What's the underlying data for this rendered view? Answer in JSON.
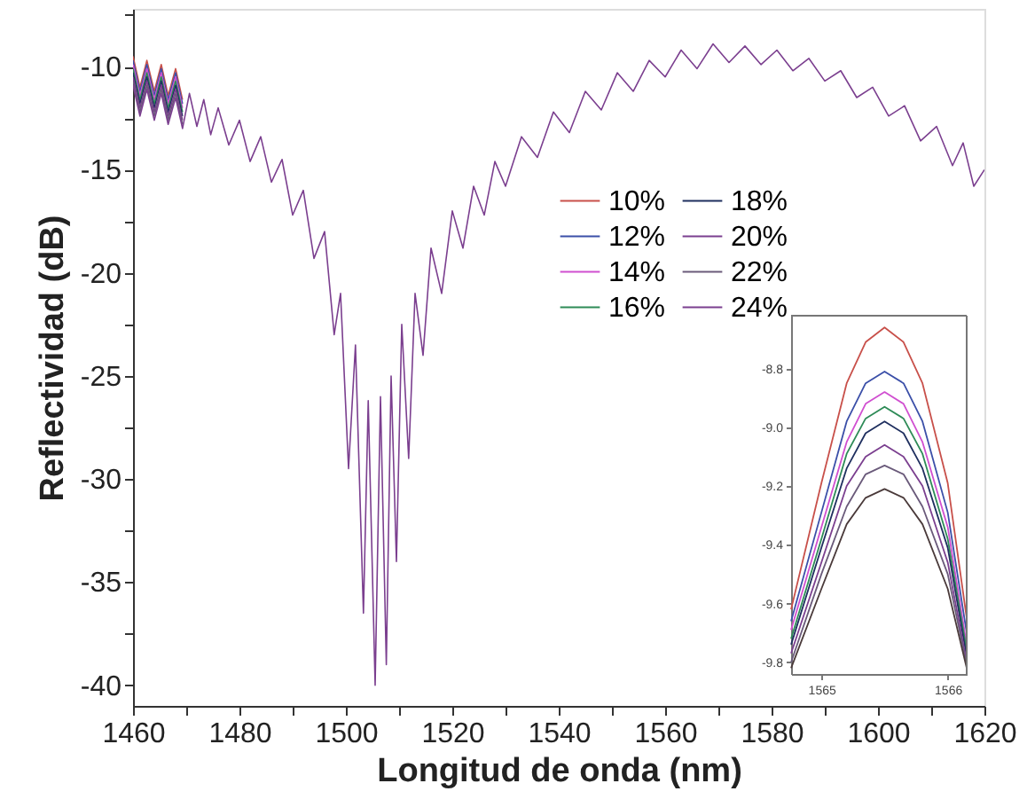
{
  "chart_data": [
    {
      "type": "line",
      "xlabel": "Longitud de onda (nm)",
      "ylabel": "Reflectividad (dB)",
      "xlim": [
        1460,
        1620
      ],
      "ylim": [
        -41,
        -7.2
      ],
      "xticks": [
        1460,
        {
          "value": 1470,
          "label": null
        },
        1480,
        {
          "value": 1490,
          "label": null
        },
        1500,
        {
          "value": 1510,
          "label": null
        },
        1520,
        {
          "value": 1530,
          "label": null
        },
        1540,
        {
          "value": 1550,
          "label": null
        },
        1560,
        {
          "value": 1570,
          "label": null
        },
        1580,
        {
          "value": 1590,
          "label": null
        },
        1600,
        {
          "value": 1610,
          "label": null
        },
        1620
      ],
      "yticks": [
        -40,
        {
          "value": -37.5,
          "label": null
        },
        -35,
        {
          "value": -32.5,
          "label": null
        },
        -30,
        {
          "value": -27.5,
          "label": null
        },
        -25,
        {
          "value": -22.5,
          "label": null
        },
        -20,
        {
          "value": -17.5,
          "label": null
        },
        -15,
        {
          "value": -12.5,
          "label": null
        },
        -10,
        {
          "value": -7.5,
          "label": null
        }
      ],
      "grid": false,
      "legend": "top right",
      "line_style": "solid",
      "marker": "none",
      "x": [
        1460,
        1461.3,
        1462.6,
        1464,
        1465.3,
        1466.6,
        1468,
        1469.3,
        1470.6,
        1472,
        1473.3,
        1474.6,
        1476,
        1478,
        1480,
        1482,
        1484,
        1486,
        1488,
        1490,
        1492,
        1494,
        1496,
        1497.8,
        1499,
        1500.5,
        1501.8,
        1503.3,
        1504.2,
        1505.5,
        1506.5,
        1507.6,
        1508.5,
        1509.5,
        1510.5,
        1511.8,
        1513,
        1514.5,
        1516,
        1518,
        1520,
        1522,
        1524,
        1526,
        1528,
        1530,
        1533,
        1536,
        1539,
        1542,
        1545,
        1548,
        1551,
        1554,
        1557,
        1560,
        1563,
        1566,
        1569,
        1572,
        1575,
        1578,
        1581,
        1584,
        1587,
        1590,
        1593,
        1596,
        1599,
        1602,
        1605,
        1608,
        1611,
        1614,
        1616,
        1618,
        1620
      ],
      "series": [
        {
          "name": "10%",
          "color": "#c8504a",
          "values": [
            -9.5,
            -11.0,
            -9.7,
            -11.2,
            -9.9,
            -11.4,
            -10.1,
            -11.6,
            null,
            null,
            null,
            null,
            null,
            null,
            null,
            null,
            null,
            null,
            null,
            null,
            null,
            null,
            null,
            null,
            null,
            null,
            null,
            null,
            null,
            null,
            null,
            null,
            null,
            null,
            null,
            null,
            null,
            null,
            null,
            null,
            null,
            null,
            null,
            null,
            null,
            null,
            null,
            null,
            null,
            null,
            null,
            null,
            null,
            null,
            null,
            null,
            null,
            null,
            null,
            null,
            null,
            null,
            null,
            null,
            null,
            null,
            null,
            null,
            null,
            null,
            null,
            null,
            null,
            null,
            null,
            null,
            null
          ]
        },
        {
          "name": "12%",
          "color": "#3b4fa8",
          "values": [
            -9.7,
            -11.2,
            -9.9,
            -11.4,
            -10.1,
            -11.6,
            -10.3,
            -11.8,
            null,
            null,
            null,
            null,
            null,
            null,
            null,
            null,
            null,
            null,
            null,
            null,
            null,
            null,
            null,
            null,
            null,
            null,
            null,
            null,
            null,
            null,
            null,
            null,
            null,
            null,
            null,
            null,
            null,
            null,
            null,
            null,
            null,
            null,
            null,
            null,
            null,
            null,
            null,
            null,
            null,
            null,
            null,
            null,
            null,
            null,
            null,
            null,
            null,
            null,
            null,
            null,
            null,
            null,
            null,
            null,
            null,
            null,
            null,
            null,
            null,
            null,
            null,
            null,
            null,
            null,
            null,
            null,
            null
          ]
        },
        {
          "name": "14%",
          "color": "#d04fd0",
          "values": [
            -9.9,
            -11.4,
            -10.1,
            -11.6,
            -10.3,
            -11.8,
            -10.5,
            -12.0,
            null,
            null,
            null,
            null,
            null,
            null,
            null,
            null,
            null,
            null,
            null,
            null,
            null,
            null,
            null,
            null,
            null,
            null,
            null,
            null,
            null,
            null,
            null,
            null,
            null,
            null,
            null,
            null,
            null,
            null,
            null,
            null,
            null,
            null,
            null,
            null,
            null,
            null,
            null,
            null,
            null,
            null,
            null,
            null,
            null,
            null,
            null,
            null,
            null,
            null,
            null,
            null,
            null,
            null,
            null,
            null,
            null,
            null,
            null,
            null,
            null,
            null,
            null,
            null,
            null,
            null,
            null,
            null,
            null
          ]
        },
        {
          "name": "16%",
          "color": "#2e8b57",
          "values": [
            -10.1,
            -11.6,
            -10.3,
            -11.8,
            -10.5,
            -12.0,
            -10.7,
            -12.2,
            null,
            null,
            null,
            null,
            null,
            null,
            null,
            null,
            null,
            null,
            null,
            null,
            null,
            null,
            null,
            null,
            null,
            null,
            null,
            null,
            null,
            null,
            null,
            null,
            null,
            null,
            null,
            null,
            null,
            null,
            null,
            null,
            null,
            null,
            null,
            null,
            null,
            null,
            null,
            null,
            null,
            null,
            null,
            null,
            null,
            null,
            null,
            null,
            null,
            null,
            null,
            null,
            null,
            null,
            null,
            null,
            null,
            null,
            null,
            null,
            null,
            null,
            null,
            null,
            null,
            null,
            null,
            null,
            null
          ]
        },
        {
          "name": "18%",
          "color": "#1f2f5f",
          "values": [
            -10.3,
            -11.8,
            -10.5,
            -12.0,
            -10.7,
            -12.2,
            -10.9,
            -12.4,
            null,
            null,
            null,
            null,
            null,
            null,
            null,
            null,
            null,
            null,
            null,
            null,
            null,
            null,
            null,
            null,
            null,
            null,
            null,
            null,
            null,
            null,
            null,
            null,
            null,
            null,
            null,
            null,
            null,
            null,
            null,
            null,
            null,
            null,
            null,
            null,
            null,
            null,
            null,
            null,
            null,
            null,
            null,
            null,
            null,
            null,
            null,
            null,
            null,
            null,
            null,
            null,
            null,
            null,
            null,
            null,
            null,
            null,
            null,
            null,
            null,
            null,
            null,
            null,
            null,
            null,
            null,
            null,
            null
          ]
        },
        {
          "name": "20%",
          "color": "#7b3f8f",
          "values": [
            -10.5,
            -12.0,
            -10.7,
            -12.2,
            -10.9,
            -12.4,
            -11.1,
            -12.6,
            null,
            null,
            null,
            null,
            null,
            null,
            null,
            null,
            null,
            null,
            null,
            null,
            null,
            null,
            null,
            null,
            null,
            null,
            null,
            null,
            null,
            null,
            null,
            null,
            null,
            null,
            null,
            null,
            null,
            null,
            null,
            null,
            null,
            null,
            null,
            null,
            null,
            null,
            null,
            null,
            null,
            null,
            null,
            null,
            null,
            null,
            null,
            null,
            null,
            null,
            null,
            null,
            null,
            null,
            null,
            null,
            null,
            null,
            null,
            null,
            null,
            null,
            null,
            null,
            null,
            null,
            null,
            null,
            null
          ]
        },
        {
          "name": "22%",
          "color": "#6a5a7a",
          "values": [
            -10.7,
            -12.2,
            -10.9,
            -12.4,
            -11.1,
            -12.6,
            -11.3,
            -12.8,
            null,
            null,
            null,
            null,
            null,
            null,
            null,
            null,
            null,
            null,
            null,
            null,
            null,
            null,
            null,
            null,
            null,
            null,
            null,
            null,
            null,
            null,
            null,
            null,
            null,
            null,
            null,
            null,
            null,
            null,
            null,
            null,
            null,
            null,
            null,
            null,
            null,
            null,
            null,
            null,
            null,
            null,
            null,
            null,
            null,
            null,
            null,
            null,
            null,
            null,
            null,
            null,
            null,
            null,
            null,
            null,
            null,
            null,
            null,
            null,
            null,
            null,
            null,
            null,
            null,
            null,
            null,
            null,
            null
          ]
        },
        {
          "name": "24%",
          "color": "#7b3f8f",
          "values": [
            -10.9,
            -12.4,
            -11.1,
            -12.6,
            -11.3,
            -12.8,
            -11.5,
            -13.0,
            -11.3,
            -12.9,
            -11.6,
            -13.3,
            -12.0,
            -13.8,
            -12.6,
            -14.6,
            -13.4,
            -15.6,
            -14.5,
            -17.2,
            -16.0,
            -19.3,
            -18.0,
            -23.0,
            -21.0,
            -29.5,
            -23.5,
            -36.5,
            -26.2,
            -40.0,
            -26.0,
            -39.0,
            -25.0,
            -34.0,
            -22.5,
            -29.0,
            -21.0,
            -24.0,
            -18.8,
            -21.0,
            -17.0,
            -18.8,
            -15.8,
            -17.2,
            -14.6,
            -15.8,
            -13.4,
            -14.4,
            -12.2,
            -13.2,
            -11.2,
            -12.1,
            -10.3,
            -11.2,
            -9.7,
            -10.5,
            -9.2,
            -10.1,
            -8.9,
            -9.8,
            -9.0,
            -9.9,
            -9.2,
            -10.2,
            -9.6,
            -10.7,
            -10.2,
            -11.5,
            -11.0,
            -12.4,
            -11.9,
            -13.6,
            -12.9,
            -14.8,
            -13.7,
            -15.8,
            -15.0
          ]
        }
      ]
    },
    {
      "type": "line",
      "xlim": [
        1564.76,
        1566.15
      ],
      "ylim": [
        -9.84,
        -8.62
      ],
      "xticks": [
        1565,
        1566
      ],
      "yticks": [
        -8.8,
        {
          "value": -9.0,
          "label": "-9.0"
        },
        -9.2,
        -9.4,
        -9.6,
        -9.8
      ],
      "grid": false,
      "line_style": "solid",
      "marker": "none",
      "x": [
        1564.76,
        1565.0,
        1565.2,
        1565.35,
        1565.5,
        1565.65,
        1565.8,
        1566.0,
        1566.15
      ],
      "series": [
        {
          "color": "#c8504a",
          "values": [
            -9.62,
            -9.19,
            -8.85,
            -8.71,
            -8.66,
            -8.71,
            -8.85,
            -9.19,
            -9.65
          ]
        },
        {
          "color": "#3b4fa8",
          "values": [
            -9.66,
            -9.29,
            -8.98,
            -8.85,
            -8.81,
            -8.85,
            -8.98,
            -9.29,
            -9.7
          ]
        },
        {
          "color": "#d04fd0",
          "values": [
            -9.69,
            -9.34,
            -9.05,
            -8.92,
            -8.88,
            -8.92,
            -9.05,
            -9.34,
            -9.74
          ]
        },
        {
          "color": "#2e8b57",
          "values": [
            -9.72,
            -9.38,
            -9.09,
            -8.97,
            -8.93,
            -8.97,
            -9.09,
            -9.38,
            -9.76
          ]
        },
        {
          "color": "#1f2f5f",
          "values": [
            -9.74,
            -9.41,
            -9.14,
            -9.02,
            -8.98,
            -9.02,
            -9.14,
            -9.41,
            -9.78
          ]
        },
        {
          "color": "#7b3f8f",
          "values": [
            -9.77,
            -9.46,
            -9.2,
            -9.1,
            -9.06,
            -9.1,
            -9.2,
            -9.46,
            -9.8
          ]
        },
        {
          "color": "#6a5a7a",
          "values": [
            -9.8,
            -9.5,
            -9.27,
            -9.16,
            -9.13,
            -9.16,
            -9.27,
            -9.5,
            -9.81
          ]
        },
        {
          "color": "#4a3a3a",
          "values": [
            -9.82,
            -9.55,
            -9.33,
            -9.24,
            -9.21,
            -9.24,
            -9.33,
            -9.55,
            -9.82
          ]
        }
      ]
    }
  ]
}
